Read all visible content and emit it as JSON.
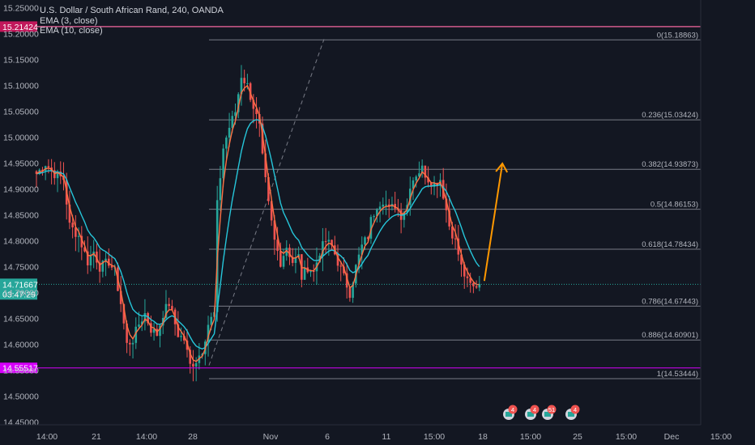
{
  "chart_data": {
    "type": "candlestick",
    "title": "U.S. Dollar / South African Rand, 240, OANDA",
    "indicators": [
      "EMA (3, close)",
      "EMA (10, close)"
    ],
    "y_ticks": [
      "15.25000",
      "15.20000",
      "15.15000",
      "15.10000",
      "15.05000",
      "15.00000",
      "14.95000",
      "14.90000",
      "14.85000",
      "14.80000",
      "14.75000",
      "14.70000",
      "14.65000",
      "14.60000",
      "14.55000",
      "14.50000",
      "14.45000"
    ],
    "x_ticks": [
      "14:00",
      "21",
      "14:00",
      "28",
      "Nov",
      "6",
      "11",
      "15:00",
      "18",
      "15:00",
      "25",
      "15:00",
      "Dec",
      "15:00"
    ],
    "ylim": [
      14.45,
      15.25
    ],
    "price_labels": {
      "upper_line": "15.21424",
      "current_price": "14.71667",
      "countdown": "03:47:29",
      "lower_line": "14.55517"
    },
    "fibonacci": [
      {
        "level": "0",
        "price": "15.18863"
      },
      {
        "level": "0.236",
        "price": "15.03424"
      },
      {
        "level": "0.382",
        "price": "14.93873"
      },
      {
        "level": "0.5",
        "price": "14.86153"
      },
      {
        "level": "0.618",
        "price": "14.78434"
      },
      {
        "level": "0.786",
        "price": "14.67443"
      },
      {
        "level": "0.886",
        "price": "14.60901"
      },
      {
        "level": "1",
        "price": "14.53444"
      }
    ],
    "event_badges": [
      "4",
      "4",
      "51",
      "4"
    ],
    "close_path": [
      [
        0,
        14.93
      ],
      [
        3,
        14.95
      ],
      [
        6,
        14.93
      ],
      [
        9,
        14.92
      ],
      [
        11,
        14.83
      ],
      [
        14,
        14.81
      ],
      [
        17,
        14.76
      ],
      [
        19,
        14.78
      ],
      [
        21,
        14.75
      ],
      [
        24,
        14.76
      ],
      [
        26,
        14.74
      ],
      [
        28,
        14.68
      ],
      [
        30,
        14.6
      ],
      [
        32,
        14.61
      ],
      [
        34,
        14.64
      ],
      [
        36,
        14.66
      ],
      [
        38,
        14.63
      ],
      [
        40,
        14.62
      ],
      [
        42,
        14.66
      ],
      [
        44,
        14.68
      ],
      [
        45,
        14.66
      ],
      [
        47,
        14.62
      ],
      [
        49,
        14.61
      ],
      [
        51,
        14.56
      ],
      [
        53,
        14.57
      ],
      [
        55,
        14.59
      ],
      [
        57,
        14.64
      ],
      [
        59,
        14.66
      ],
      [
        60,
        14.87
      ],
      [
        62,
        14.98
      ],
      [
        64,
        15.02
      ],
      [
        66,
        15.05
      ],
      [
        68,
        15.12
      ],
      [
        70,
        15.1
      ],
      [
        72,
        15.06
      ],
      [
        74,
        15.02
      ],
      [
        75,
        14.96
      ],
      [
        77,
        14.87
      ],
      [
        79,
        14.8
      ],
      [
        81,
        14.76
      ],
      [
        83,
        14.79
      ],
      [
        85,
        14.76
      ],
      [
        87,
        14.77
      ],
      [
        88,
        14.73
      ],
      [
        90,
        14.75
      ],
      [
        92,
        14.74
      ],
      [
        94,
        14.78
      ],
      [
        96,
        14.8
      ],
      [
        98,
        14.79
      ],
      [
        100,
        14.76
      ],
      [
        102,
        14.73
      ],
      [
        104,
        14.7
      ],
      [
        106,
        14.75
      ],
      [
        108,
        14.79
      ],
      [
        110,
        14.81
      ],
      [
        111,
        14.84
      ],
      [
        113,
        14.87
      ],
      [
        115,
        14.88
      ],
      [
        117,
        14.86
      ],
      [
        119,
        14.87
      ],
      [
        121,
        14.85
      ],
      [
        123,
        14.87
      ],
      [
        124,
        14.91
      ],
      [
        126,
        14.93
      ],
      [
        128,
        14.94
      ],
      [
        130,
        14.92
      ],
      [
        132,
        14.91
      ],
      [
        134,
        14.92
      ],
      [
        136,
        14.86
      ],
      [
        137,
        14.83
      ],
      [
        139,
        14.8
      ],
      [
        141,
        14.75
      ],
      [
        143,
        14.72
      ],
      [
        145,
        14.71
      ],
      [
        147,
        14.72
      ]
    ],
    "projection": [
      [
        147,
        14.72
      ],
      [
        153,
        14.95
      ]
    ]
  }
}
